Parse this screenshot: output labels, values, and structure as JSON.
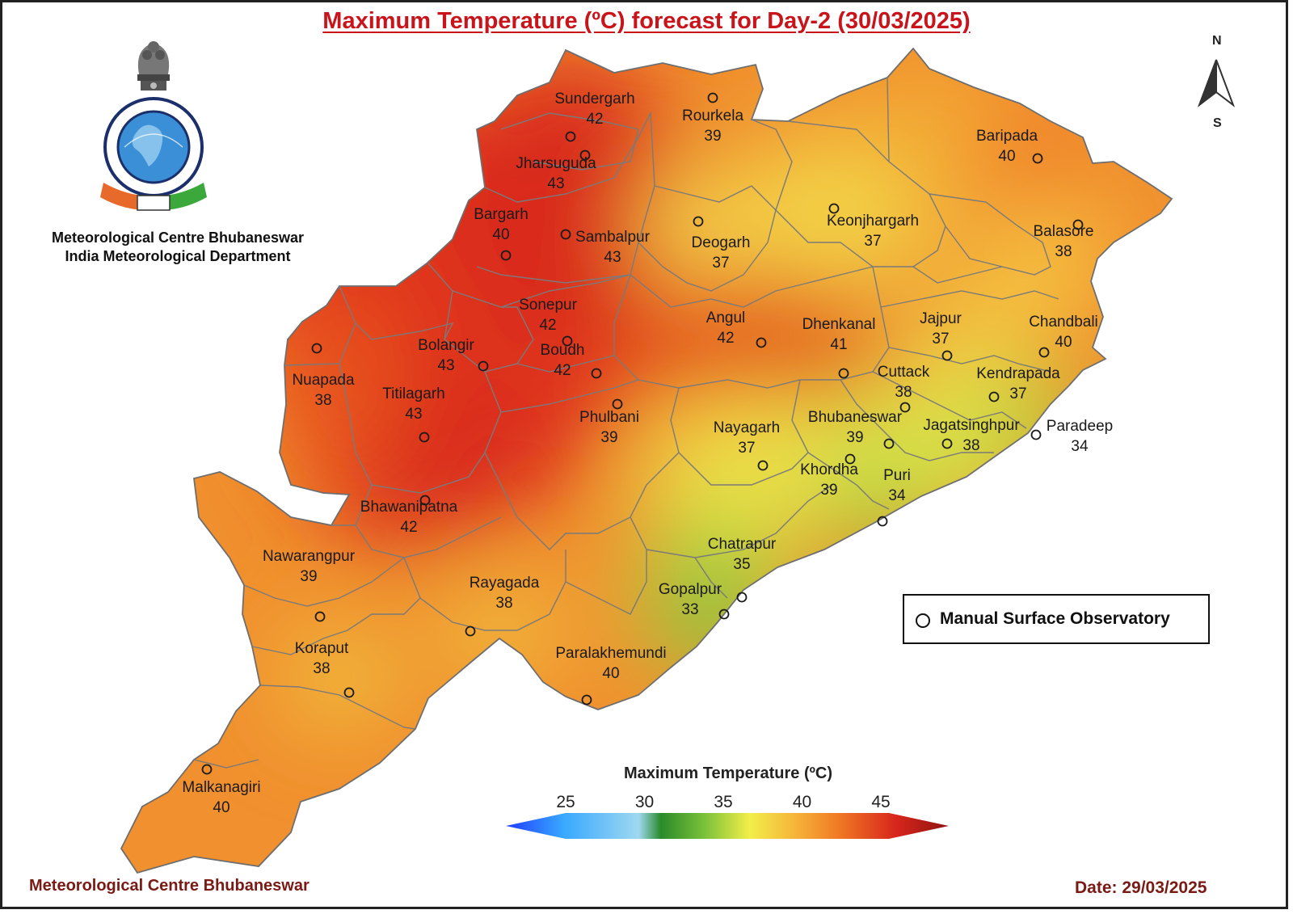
{
  "title": "Maximum Temperature (ºC) forecast for Day-2 (30/03/2025)",
  "organization": {
    "line1": "Meteorological Centre Bhubaneswar",
    "line2": "India Meteorological Department"
  },
  "footer": {
    "left": "Meteorological Centre Bhubaneswar",
    "right": "Date: 29/03/2025"
  },
  "north_arrow": {
    "top": "N",
    "bottom": "S"
  },
  "legend": {
    "label": "Manual Surface Observatory"
  },
  "colorbar": {
    "title": "Maximum Temperature (ºC)",
    "ticks": [
      25,
      30,
      35,
      40,
      45
    ],
    "colors": [
      "#1f3cff",
      "#38a8ff",
      "#9fd8f0",
      "#2a8a2a",
      "#7cc23a",
      "#f2ee4a",
      "#f6b63a",
      "#f07a24",
      "#d8261c",
      "#8e1410"
    ]
  },
  "stations": [
    {
      "name": "Sundergarh",
      "temp": 42
    },
    {
      "name": "Rourkela",
      "temp": 39
    },
    {
      "name": "Jharsuguda",
      "temp": 43
    },
    {
      "name": "Baripada",
      "temp": 40
    },
    {
      "name": "Bargarh",
      "temp": 40
    },
    {
      "name": "Sambalpur",
      "temp": 43
    },
    {
      "name": "Deogarh",
      "temp": 37
    },
    {
      "name": "Keonjhargarh",
      "temp": 37
    },
    {
      "name": "Balasore",
      "temp": 38
    },
    {
      "name": "Sonepur",
      "temp": 42
    },
    {
      "name": "Angul",
      "temp": 42
    },
    {
      "name": "Dhenkanal",
      "temp": 41
    },
    {
      "name": "Jajpur",
      "temp": 37
    },
    {
      "name": "Chandbali",
      "temp": 40
    },
    {
      "name": "Bolangir",
      "temp": 43
    },
    {
      "name": "Boudh",
      "temp": 42
    },
    {
      "name": "Nuapada",
      "temp": 38
    },
    {
      "name": "Cuttack",
      "temp": 38
    },
    {
      "name": "Kendrapada",
      "temp": 37
    },
    {
      "name": "Titilagarh",
      "temp": 43
    },
    {
      "name": "Phulbani",
      "temp": 39
    },
    {
      "name": "Nayagarh",
      "temp": 37
    },
    {
      "name": "Bhubaneswar",
      "temp": 39
    },
    {
      "name": "Jagatsinghpur",
      "temp": 38
    },
    {
      "name": "Paradeep",
      "temp": 34
    },
    {
      "name": "Khordha",
      "temp": 39
    },
    {
      "name": "Puri",
      "temp": 34
    },
    {
      "name": "Bhawanipatna",
      "temp": 42
    },
    {
      "name": "Chatrapur",
      "temp": 35
    },
    {
      "name": "Nawarangpur",
      "temp": 39
    },
    {
      "name": "Rayagada",
      "temp": 38
    },
    {
      "name": "Gopalpur",
      "temp": 33
    },
    {
      "name": "Koraput",
      "temp": 38
    },
    {
      "name": "Paralakhemundi",
      "temp": 40
    },
    {
      "name": "Malkanagiri",
      "temp": 40
    }
  ]
}
